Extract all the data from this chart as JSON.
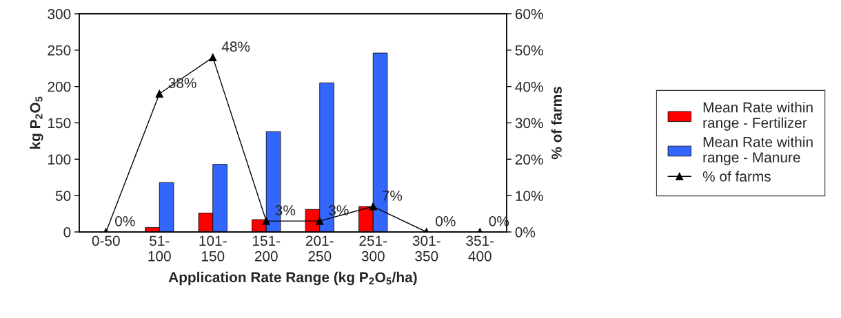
{
  "chart_data": {
    "type": "bar",
    "xlabel": "Application Rate Range (kg P$_{2}$O$_{5}$/ha)",
    "ylabel": "kg P$_{2}$O$_{5}$",
    "y2label": "% of farms",
    "categories": [
      "0-50",
      "51-\n100",
      "101-\n150",
      "151-\n200",
      "201-\n250",
      "251-\n300",
      "301-\n350",
      "351-\n400"
    ],
    "series": [
      {
        "name": "Mean Rate within\nrange - Fertilizer",
        "color": "#ff0000",
        "values": [
          null,
          6,
          26,
          17,
          31,
          35,
          null,
          null
        ]
      },
      {
        "name": "Mean Rate within\nrange - Manure",
        "color": "#3366ff",
        "values": [
          null,
          68,
          93,
          138,
          205,
          246,
          null,
          null
        ]
      },
      {
        "name": "% of farms",
        "type": "line",
        "axis": "y2",
        "color": "#000000",
        "marker": "triangle",
        "values": [
          0,
          38,
          48,
          3,
          3,
          7,
          0,
          0
        ],
        "value_labels": [
          "0%",
          "38%",
          "48%",
          "3%",
          "3%",
          "7%",
          "0%",
          "0%"
        ]
      }
    ],
    "ylim": [
      0,
      300
    ],
    "yticks": [
      0,
      50,
      100,
      150,
      200,
      250,
      300
    ],
    "y2lim": [
      0,
      60
    ],
    "y2ticks": [
      {
        "value": 0,
        "label": "0%"
      },
      {
        "value": 10,
        "label": "10%"
      },
      {
        "value": 20,
        "label": "20%"
      },
      {
        "value": 30,
        "label": "30%"
      },
      {
        "value": 40,
        "label": "40%"
      },
      {
        "value": 50,
        "label": "50%"
      },
      {
        "value": 60,
        "label": "60%"
      }
    ],
    "grid": false,
    "legend": "right"
  }
}
